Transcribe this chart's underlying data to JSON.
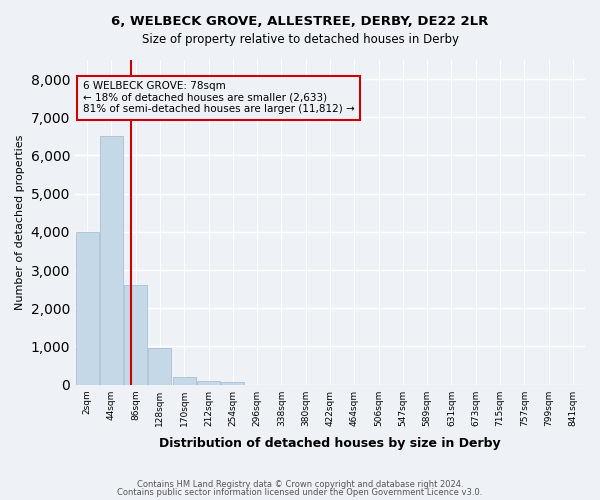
{
  "title_line1": "6, WELBECK GROVE, ALLESTREE, DERBY, DE22 2LR",
  "title_line2": "Size of property relative to detached houses in Derby",
  "xlabel": "Distribution of detached houses by size in Derby",
  "ylabel": "Number of detached properties",
  "bin_labels": [
    "2sqm",
    "44sqm",
    "86sqm",
    "128sqm",
    "170sqm",
    "212sqm",
    "254sqm",
    "296sqm",
    "338sqm",
    "380sqm",
    "422sqm",
    "464sqm",
    "506sqm",
    "547sqm",
    "589sqm",
    "631sqm",
    "673sqm",
    "715sqm",
    "757sqm",
    "799sqm",
    "841sqm"
  ],
  "bar_heights": [
    4000,
    6500,
    2600,
    950,
    200,
    100,
    60,
    0,
    0,
    0,
    0,
    0,
    0,
    0,
    0,
    0,
    0,
    0,
    0,
    0,
    0
  ],
  "bar_color": "#c5d8e8",
  "bar_edge_color": "#a0b8cc",
  "property_line_x": 1.8,
  "annotation_title": "6 WELBECK GROVE: 78sqm",
  "annotation_line1": "← 18% of detached houses are smaller (2,633)",
  "annotation_line2": "81% of semi-detached houses are larger (11,812) →",
  "annotation_box_color": "#cc0000",
  "ylim": [
    0,
    8500
  ],
  "yticks": [
    0,
    1000,
    2000,
    3000,
    4000,
    5000,
    6000,
    7000,
    8000
  ],
  "footer_line1": "Contains HM Land Registry data © Crown copyright and database right 2024.",
  "footer_line2": "Contains public sector information licensed under the Open Government Licence v3.0.",
  "bg_color": "#eef2f7",
  "grid_color": "#ffffff"
}
